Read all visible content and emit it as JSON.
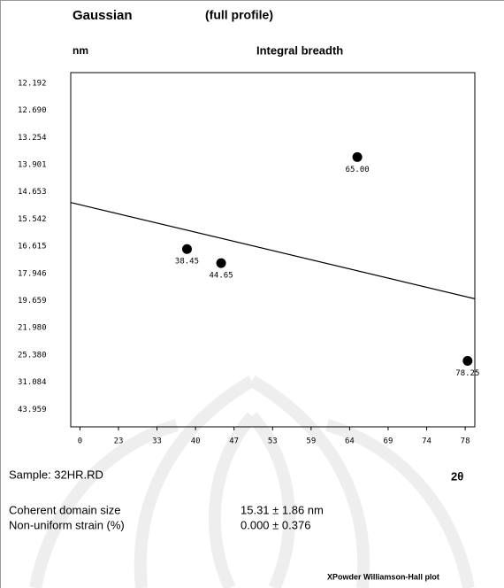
{
  "chart_data": {
    "type": "scatter",
    "title": "Gaussian",
    "subtitle": "(full profile)",
    "y_unit_label": "nm",
    "y_label": "Integral breadth",
    "x_label": "2θ",
    "sample": "Sample: 32HR.RD",
    "scale": "piecewise",
    "y_reversed": true,
    "xlim": [
      -5.5,
      79
    ],
    "xticks": [
      0,
      23,
      33,
      40,
      47,
      53,
      59,
      64,
      69,
      74,
      78
    ],
    "ylim": [
      12.0,
      52.2
    ],
    "yticks": [
      12.192,
      {
        "value": 12.69,
        "label": "12.690"
      },
      13.254,
      13.901,
      14.653,
      15.542,
      16.615,
      17.946,
      19.659,
      {
        "value": 21.98,
        "label": "21.980"
      },
      {
        "value": 25.38,
        "label": "25.380"
      },
      31.084,
      43.959
    ],
    "series": [
      {
        "color": "#000000",
        "x": [
          38.45,
          44.65,
          65.0,
          78.25
        ],
        "x_labels": [
          "38.45",
          "44.65",
          "65.00",
          "78.25"
        ],
        "values": [
          16.75,
          17.44,
          13.72,
          26.6
        ]
      }
    ],
    "fit_line": {
      "color": "#000000",
      "x": [
        -5.5,
        79
      ],
      "values": [
        15.0,
        19.54
      ]
    },
    "results": [
      {
        "label": "Coherent domain size",
        "value": "15.31 ± 1.86 nm"
      },
      {
        "label": "Non-uniform strain (%)",
        "value": "0.000 ± 0.376"
      }
    ],
    "footer": "XPowder Williamson-Hall plot"
  }
}
